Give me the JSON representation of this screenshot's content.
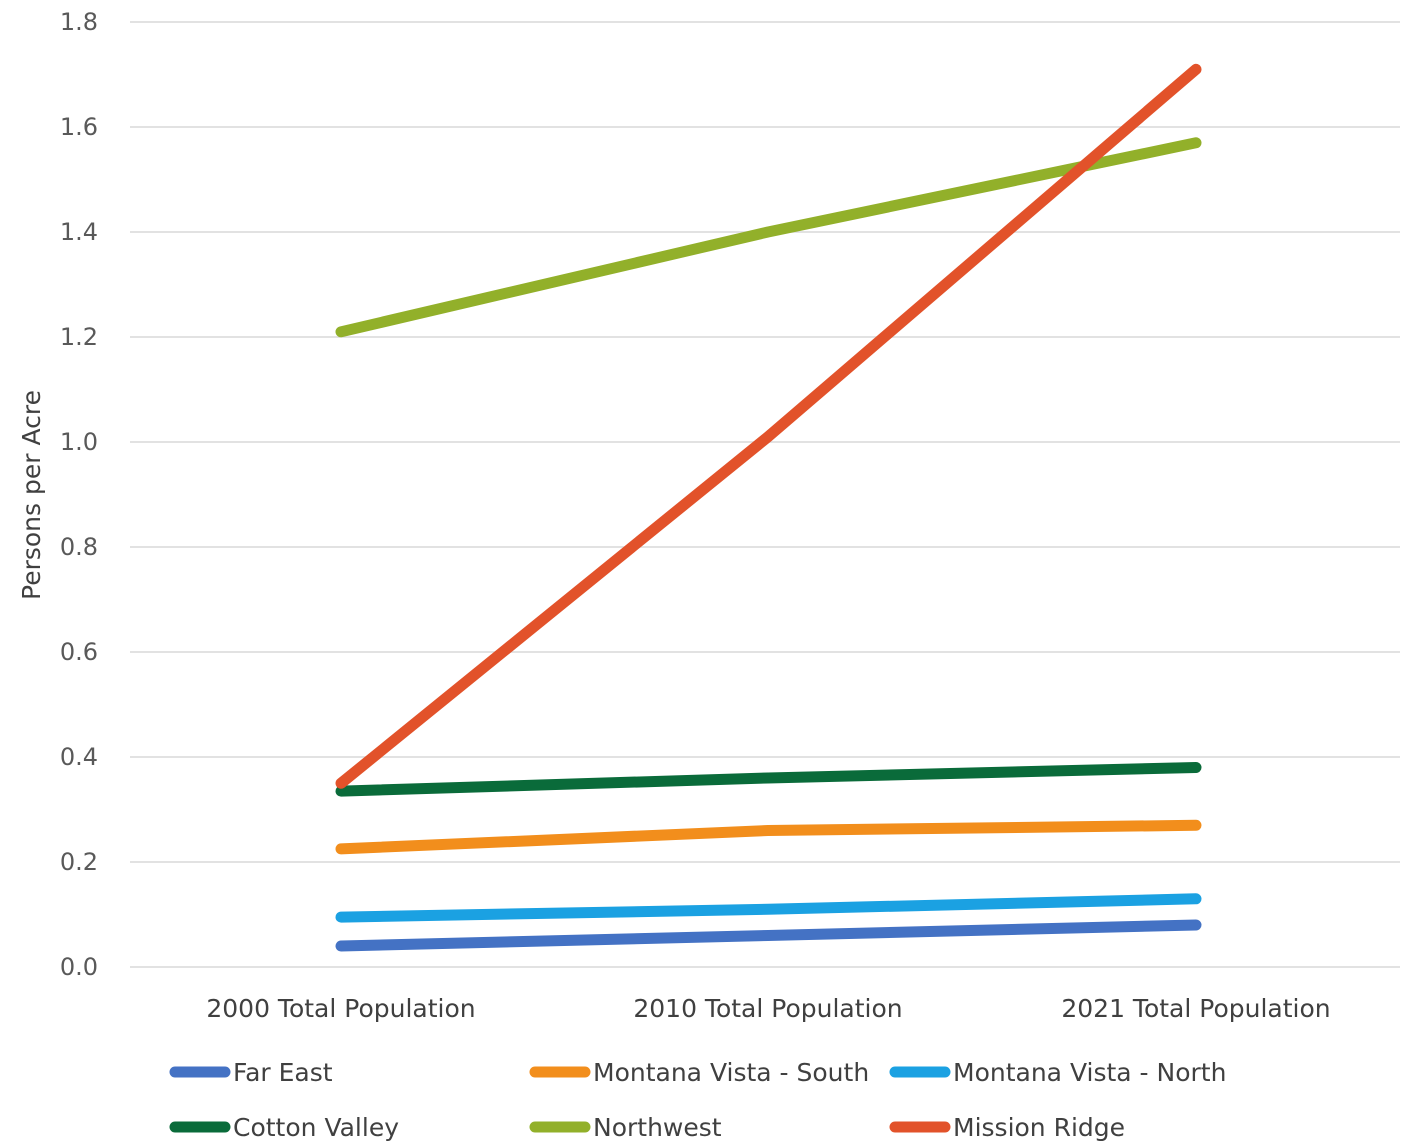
{
  "chart_data": {
    "type": "line",
    "title": "",
    "xlabel": "",
    "ylabel": "Persons per Acre",
    "categories": [
      "2000 Total Population",
      "2010 Total Population",
      "2021 Total Population"
    ],
    "ylim": [
      0,
      1.8
    ],
    "yticks": [
      "0.0",
      "0.2",
      "0.4",
      "0.6",
      "0.8",
      "1.0",
      "1.2",
      "1.4",
      "1.6",
      "1.8"
    ],
    "grid": true,
    "legend_position": "bottom",
    "series": [
      {
        "name": "Far East",
        "color": "#4472C4",
        "values": [
          0.04,
          0.06,
          0.08
        ]
      },
      {
        "name": "Montana Vista - South",
        "color": "#F28E1C",
        "values": [
          0.225,
          0.26,
          0.27
        ]
      },
      {
        "name": "Montana Vista - North",
        "color": "#1BA1E2",
        "values": [
          0.095,
          0.11,
          0.13
        ]
      },
      {
        "name": "Cotton Valley",
        "color": "#0A6B3A",
        "values": [
          0.335,
          0.36,
          0.38
        ]
      },
      {
        "name": "Northwest",
        "color": "#92B02A",
        "values": [
          1.21,
          1.4,
          1.57
        ]
      },
      {
        "name": "Mission Ridge",
        "color": "#E2522A",
        "values": [
          0.35,
          1.01,
          1.71
        ]
      }
    ]
  }
}
